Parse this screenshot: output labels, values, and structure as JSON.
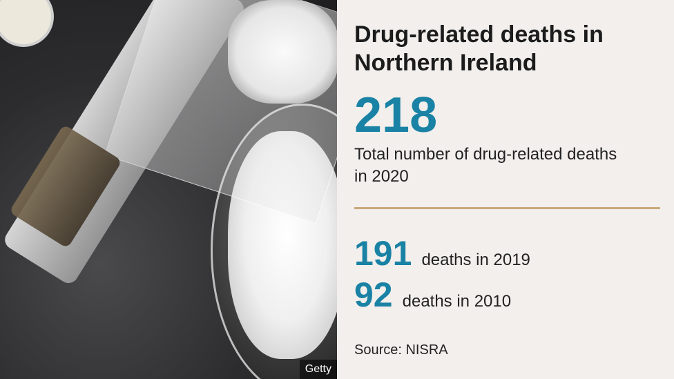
{
  "title": "Drug-related deaths in Northern Ireland",
  "headline": {
    "value": "218",
    "description": "Total number of drug-related deaths in 2020"
  },
  "stats": [
    {
      "value": "191",
      "label": "deaths in 2019"
    },
    {
      "value": "92",
      "label": "deaths in 2010"
    }
  ],
  "source": "Source: NISRA",
  "photo_credit": "Getty",
  "colors": {
    "accent": "#1a82a4",
    "rule": "#c9a978",
    "background": "#f2efec"
  }
}
